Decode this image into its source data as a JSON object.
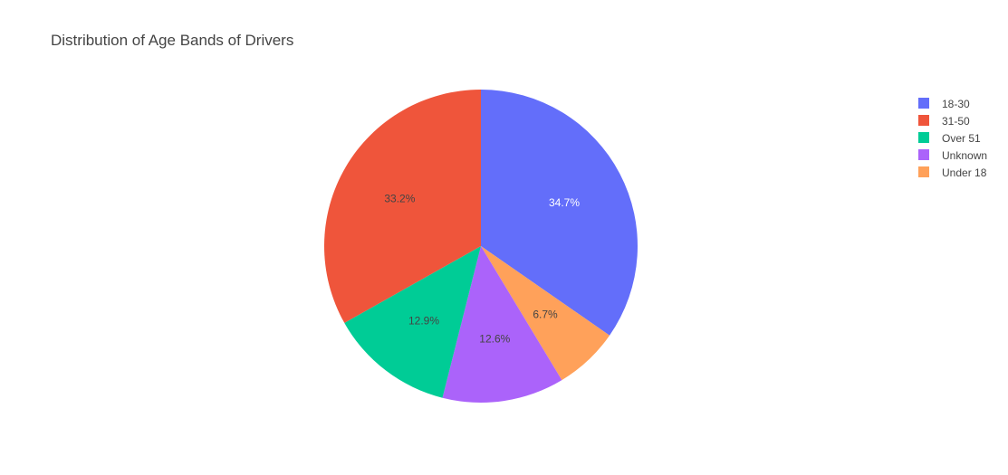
{
  "chart_data": {
    "type": "pie",
    "title": "Distribution of Age Bands of Drivers",
    "categories": [
      "18-30",
      "31-50",
      "Over 51",
      "Unknown",
      "Under 18"
    ],
    "values": [
      34.7,
      33.2,
      12.9,
      12.6,
      6.7
    ],
    "labels": [
      "34.7%",
      "33.2%",
      "12.9%",
      "12.6%",
      "6.7%"
    ],
    "slice_order": [
      "18-30",
      "Under 18",
      "Unknown",
      "Over 51",
      "31-50"
    ],
    "direction": "clockwise",
    "start": "top",
    "legend": {
      "position": "top-right",
      "entries": [
        "18-30",
        "31-50",
        "Over 51",
        "Unknown",
        "Under 18"
      ]
    },
    "colors": {
      "18-30": "#636efa",
      "31-50": "#ef553b",
      "Over 51": "#00cc96",
      "Unknown": "#ab63fa",
      "Under 18": "#ffa15a"
    },
    "label_colors": {
      "18-30": "#ffffff",
      "31-50": "#444444",
      "Over 51": "#444444",
      "Unknown": "#444444",
      "Under 18": "#444444"
    }
  }
}
